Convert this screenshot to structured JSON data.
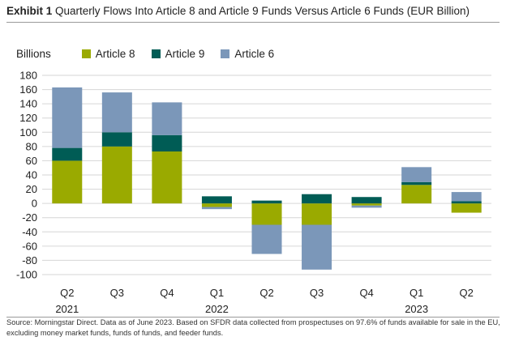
{
  "header": {
    "exhibit_label": "Exhibit 1",
    "title": "Quarterly Flows Into Article 8 and Article 9 Funds Versus Article 6 Funds (EUR Billion)"
  },
  "footer": {
    "line1": "Source: Morningstar Direct. Data as of June 2023. Based on SFDR data collected from prospectuses on 97.6% of funds available for sale in the EU,",
    "line2": "excluding money market funds, funds of funds, and feeder funds."
  },
  "colors": {
    "article8": "#9aaa00",
    "article9": "#005c55",
    "article6": "#7b97b9",
    "grid": "#d6d6d6"
  },
  "chart_data": {
    "type": "bar",
    "stacked": true,
    "ylabel": "Billions",
    "ylim": [
      -100,
      180
    ],
    "yticks": [
      -100,
      -80,
      -60,
      -40,
      -20,
      0,
      20,
      40,
      60,
      80,
      100,
      120,
      140,
      160,
      180
    ],
    "grid": true,
    "legend_position": "top-left",
    "categories": [
      "Q2",
      "Q3",
      "Q4",
      "Q1",
      "Q2",
      "Q3",
      "Q4",
      "Q1",
      "Q2"
    ],
    "year_labels": [
      {
        "index": 0,
        "label": "2021"
      },
      {
        "index": 3,
        "label": "2022"
      },
      {
        "index": 7,
        "label": "2023"
      }
    ],
    "series": [
      {
        "name": "Article 8",
        "values": [
          60,
          80,
          73,
          -5,
          -30,
          -30,
          -3,
          26,
          -13
        ]
      },
      {
        "name": "Article 9",
        "values": [
          18,
          20,
          23,
          10,
          4,
          13,
          9,
          4,
          3
        ]
      },
      {
        "name": "Article 6",
        "values": [
          85,
          56,
          46,
          -3,
          -41,
          -63,
          -3,
          21,
          13
        ]
      }
    ]
  }
}
